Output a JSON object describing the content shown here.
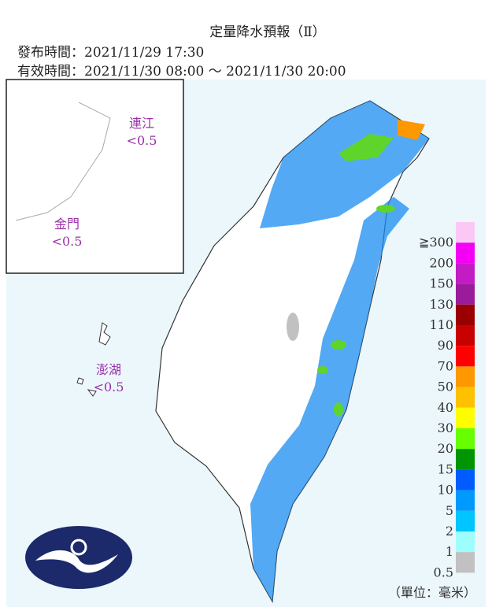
{
  "header": {
    "title": "定量降水預報（Ⅱ）",
    "issued": "發布時間：2021/11/29 17:30",
    "valid": "有效時間：2021/11/30 08:00 ～ 2021/11/30 20:00"
  },
  "islands": [
    {
      "name": "連江",
      "value": "<0.5"
    },
    {
      "name": "金門",
      "value": "<0.5"
    },
    {
      "name": "澎湖",
      "value": "<0.5"
    }
  ],
  "legend": [
    {
      "label": "≧300",
      "color": "#fbc8f5"
    },
    {
      "label": "200",
      "color": "#f400f4"
    },
    {
      "label": "150",
      "color": "#c41cc4"
    },
    {
      "label": "130",
      "color": "#9b1c9b"
    },
    {
      "label": "110",
      "color": "#9a0000"
    },
    {
      "label": "90",
      "color": "#c90000"
    },
    {
      "label": "70",
      "color": "#fe0000"
    },
    {
      "label": "50",
      "color": "#fe9800"
    },
    {
      "label": "40",
      "color": "#fec100"
    },
    {
      "label": "30",
      "color": "#fefe00"
    },
    {
      "label": "20",
      "color": "#66fe00"
    },
    {
      "label": "15",
      "color": "#019501"
    },
    {
      "label": "10",
      "color": "#005cfe"
    },
    {
      "label": "5",
      "color": "#0099fe"
    },
    {
      "label": "2",
      "color": "#00c5fe"
    },
    {
      "label": "1",
      "color": "#9efefe"
    },
    {
      "label": "0.5",
      "color": "#c1c1c1"
    }
  ],
  "unit": "（單位：毫米）"
}
